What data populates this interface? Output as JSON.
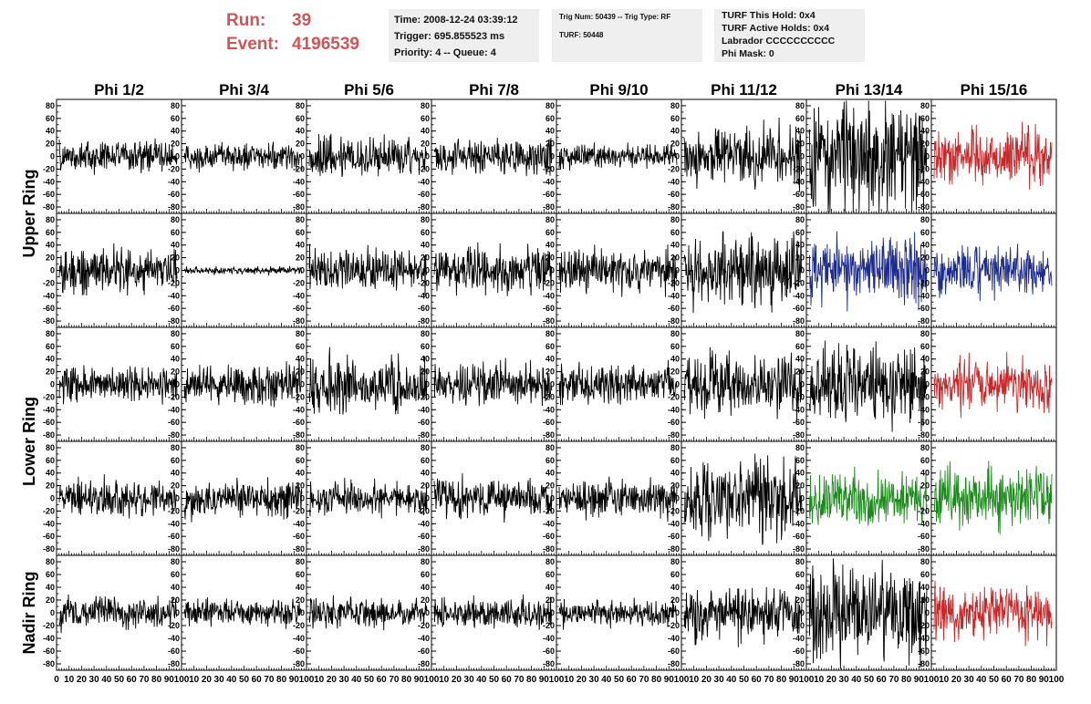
{
  "run": {
    "label": "Run:",
    "value": "39"
  },
  "event": {
    "label": "Event:",
    "value": "4196539"
  },
  "time_box": {
    "time": "Time: 2008-12-24 03:39:12",
    "trigger": "Trigger: 695.855523 ms",
    "priority": "Priority: 4 -- Queue: 4"
  },
  "trig_box": {
    "trig": "Trig Num: 50439 -- Trig Type: RF",
    "turf": "TURF: 50448"
  },
  "turf_box": {
    "this_hold": "TURF This Hold: 0x4",
    "active_holds": "TURF Active Holds: 0x4",
    "labrador": "Labrador CCCCCCCCCC",
    "phi_mask": "Phi Mask: 0"
  },
  "colors": {
    "normal": "#000000",
    "red": "#c8282a",
    "blue": "#1c2b8c",
    "green": "#1a8a1a",
    "header_red": "#d0555a"
  },
  "chart_data": {
    "type": "line",
    "columns": [
      "Phi 1/2",
      "Phi 3/4",
      "Phi 5/6",
      "Phi 7/8",
      "Phi 9/10",
      "Phi 11/12",
      "Phi 13/14",
      "Phi 15/16"
    ],
    "rows": [
      "Upper Ring",
      "Lower Ring",
      "Nadir Ring"
    ],
    "ylim": [
      -90,
      90
    ],
    "yticks": [
      80,
      60,
      40,
      20,
      0,
      -20,
      -40,
      -60,
      -80
    ],
    "xlim": [
      0,
      100
    ],
    "xticks_first": [
      "0",
      "10",
      "20",
      "30",
      "40",
      "50",
      "60",
      "70",
      "80",
      "90",
      "100"
    ],
    "xticks_other": [
      "10",
      "20",
      "30",
      "40",
      "50",
      "60",
      "70",
      "80",
      "90",
      "100"
    ],
    "waveform_count": 260,
    "panels": [
      [
        {
          "amp": 12,
          "color": "normal"
        },
        {
          "amp": 10,
          "color": "normal"
        },
        {
          "amp": 16,
          "color": "normal"
        },
        {
          "amp": 14,
          "color": "normal"
        },
        {
          "amp": 9,
          "color": "normal"
        },
        {
          "amp": 22,
          "color": "normal"
        },
        {
          "amp": 45,
          "color": "normal"
        },
        {
          "amp": 20,
          "color": "red"
        }
      ],
      [
        {
          "amp": 17,
          "color": "normal"
        },
        {
          "amp": 3,
          "color": "normal"
        },
        {
          "amp": 16,
          "color": "normal"
        },
        {
          "amp": 17,
          "color": "normal"
        },
        {
          "amp": 16,
          "color": "normal"
        },
        {
          "amp": 28,
          "color": "normal"
        },
        {
          "amp": 25,
          "color": "blue"
        },
        {
          "amp": 18,
          "color": "blue"
        }
      ],
      [
        {
          "amp": 14,
          "color": "normal"
        },
        {
          "amp": 15,
          "color": "normal"
        },
        {
          "amp": 20,
          "color": "normal"
        },
        {
          "amp": 15,
          "color": "normal"
        },
        {
          "amp": 15,
          "color": "normal"
        },
        {
          "amp": 22,
          "color": "normal"
        },
        {
          "amp": 32,
          "color": "normal"
        },
        {
          "amp": 19,
          "color": "red"
        }
      ],
      [
        {
          "amp": 14,
          "color": "normal"
        },
        {
          "amp": 14,
          "color": "normal"
        },
        {
          "amp": 13,
          "color": "normal"
        },
        {
          "amp": 15,
          "color": "normal"
        },
        {
          "amp": 14,
          "color": "normal"
        },
        {
          "amp": 30,
          "color": "normal"
        },
        {
          "amp": 22,
          "color": "green"
        },
        {
          "amp": 22,
          "color": "green"
        }
      ],
      [
        {
          "amp": 12,
          "color": "normal"
        },
        {
          "amp": 10,
          "color": "normal"
        },
        {
          "amp": 11,
          "color": "normal"
        },
        {
          "amp": 11,
          "color": "normal"
        },
        {
          "amp": 10,
          "color": "normal"
        },
        {
          "amp": 20,
          "color": "normal"
        },
        {
          "amp": 35,
          "color": "normal"
        },
        {
          "amp": 20,
          "color": "red"
        }
      ]
    ]
  }
}
